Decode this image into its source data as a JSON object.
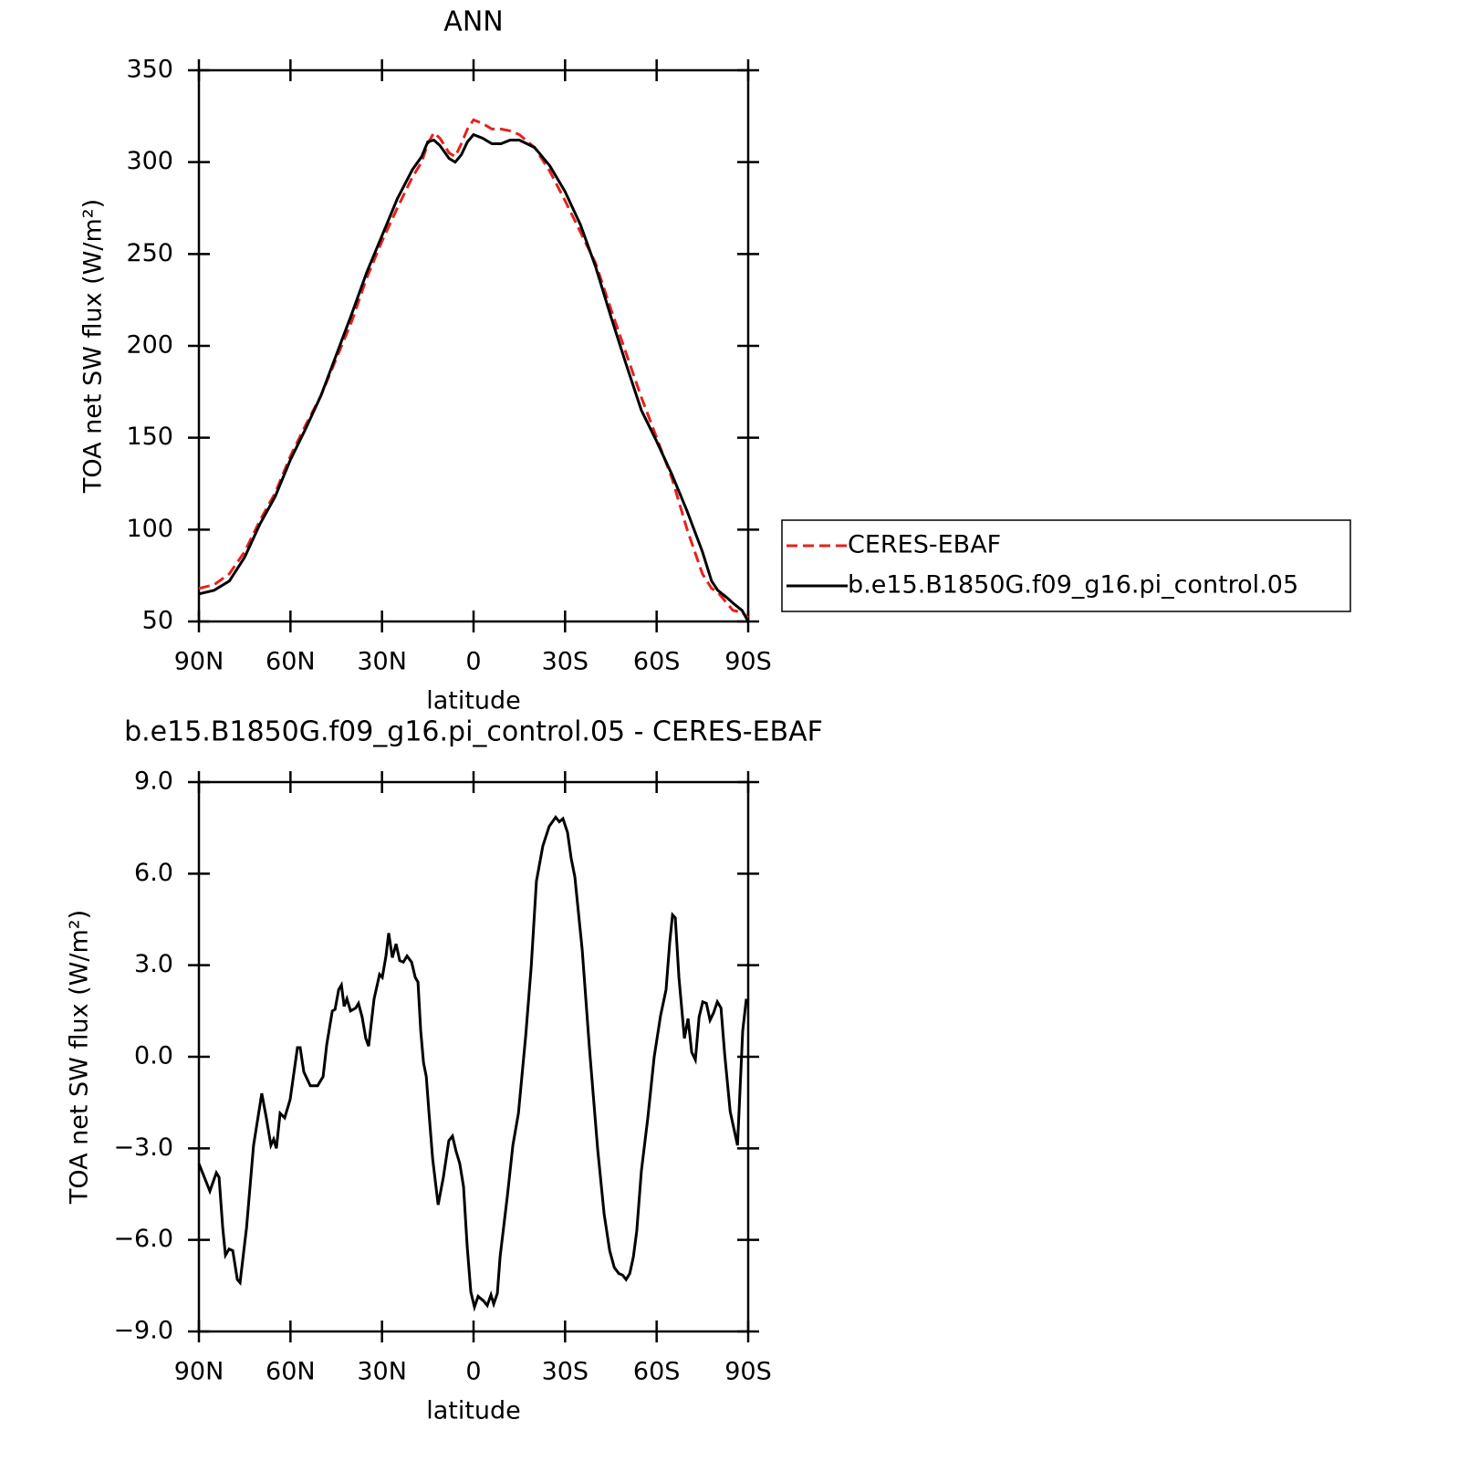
{
  "chart_data": [
    {
      "type": "line",
      "title": "ANN",
      "xlabel": "latitude",
      "ylabel": "TOA net SW flux (W/m²)",
      "x": [
        90,
        85,
        80,
        75,
        70,
        65,
        60,
        55,
        50,
        45,
        40,
        35,
        30,
        25,
        20,
        17,
        15,
        13,
        11,
        8,
        6,
        4,
        2,
        0,
        -3,
        -6,
        -9,
        -12,
        -15,
        -20,
        -25,
        -30,
        -35,
        -40,
        -45,
        -50,
        -55,
        -60,
        -65,
        -70,
        -75,
        -78,
        -80,
        -83,
        -85,
        -88,
        -90
      ],
      "series": [
        {
          "name": "CERES-EBAF",
          "color": "#e8201c",
          "style": "dashed",
          "values": [
            68,
            70,
            76,
            88,
            105,
            120,
            140,
            157,
            173,
            193,
            213,
            237,
            257,
            275,
            292,
            300,
            310,
            316,
            313,
            305,
            303,
            310,
            318,
            323,
            321,
            318,
            318,
            317,
            315,
            308,
            295,
            279,
            262,
            245,
            220,
            196,
            172,
            150,
            128,
            100,
            76,
            68,
            66,
            60,
            56,
            55,
            52
          ]
        },
        {
          "name": "b.e15.B1850G.f09_g16.pi_control.05",
          "color": "#000000",
          "style": "solid",
          "values": [
            65,
            67,
            72,
            85,
            103,
            118,
            138,
            155,
            173,
            195,
            217,
            240,
            260,
            280,
            296,
            303,
            311,
            312,
            309,
            302,
            300,
            304,
            311,
            315,
            313,
            310,
            310,
            312,
            312,
            308,
            298,
            284,
            266,
            243,
            216,
            190,
            165,
            148,
            130,
            110,
            88,
            72,
            67,
            63,
            60,
            56,
            50
          ]
        }
      ],
      "xlim": [
        90,
        -90
      ],
      "xticks": [
        {
          "value": 90,
          "label": "90N"
        },
        {
          "value": 60,
          "label": "60N"
        },
        {
          "value": 30,
          "label": "30N"
        },
        0,
        {
          "value": -30,
          "label": "30S"
        },
        {
          "value": -60,
          "label": "60S"
        },
        {
          "value": -90,
          "label": "90S"
        }
      ],
      "ylim": [
        50,
        350
      ],
      "yticks": [
        50,
        100,
        150,
        200,
        250,
        300,
        350
      ],
      "legend": "right"
    },
    {
      "type": "line",
      "title": "b.e15.B1850G.f09_g16.pi_control.05 - CERES-EBAF",
      "xlabel": "latitude",
      "ylabel": "TOA net SW flux (W/m²)",
      "x": [
        90,
        86.4,
        84.3,
        83.4,
        82.2,
        81.3,
        80.1,
        78.9,
        77.4,
        76.5,
        74.4,
        72.1,
        70.9,
        69.4,
        67.9,
        66.4,
        65.5,
        64.6,
        63.4,
        61.9,
        60.1,
        57.7,
        56.8,
        55.6,
        53.5,
        51.1,
        49.3,
        48.1,
        46.3,
        45.4,
        44.2,
        43.3,
        42.4,
        41.5,
        40.3,
        38.6,
        37.7,
        36.5,
        35.3,
        34.4,
        32.6,
        30.8,
        29.9,
        28.7,
        27.8,
        26.6,
        25.4,
        24.2,
        23.0,
        21.8,
        20.3,
        19.1,
        18.2,
        17.3,
        16.4,
        15.5,
        14.6,
        13.4,
        11.6,
        9.9,
        8.1,
        6.9,
        5.7,
        4.5,
        3.3,
        2.1,
        0.9,
        -0.3,
        -1.5,
        -3.3,
        -4.5,
        -5.7,
        -6.6,
        -7.8,
        -8.7,
        -11.1,
        -12.9,
        -14.7,
        -17.1,
        -18.9,
        -20.6,
        -22.7,
        -24.8,
        -26.9,
        -28.1,
        -29.3,
        -30.8,
        -32.0,
        -33.2,
        -35.6,
        -38.0,
        -40.7,
        -42.8,
        -44.6,
        -46.1,
        -47.6,
        -48.8,
        -50.0,
        -51.2,
        -52.4,
        -53.5,
        -55.0,
        -57.1,
        -59.2,
        -61.3,
        -63.1,
        -64.3,
        -65.2,
        -66.1,
        -67.3,
        -69.1,
        -70.3,
        -71.5,
        -72.7,
        -73.9,
        -75.1,
        -76.3,
        -77.5,
        -78.7,
        -79.9,
        -81.1,
        -82.3,
        -84.1,
        -86.5,
        -88.2,
        -89.4
      ],
      "series": [
        {
          "color": "#000000",
          "style": "solid",
          "values": [
            -3.5,
            -4.4,
            -3.8,
            -3.95,
            -5.6,
            -6.5,
            -6.3,
            -6.35,
            -7.3,
            -7.4,
            -5.6,
            -2.9,
            -2.15,
            -1.2,
            -2.0,
            -2.9,
            -2.7,
            -3.0,
            -1.85,
            -2.0,
            -1.4,
            0.3,
            0.3,
            -0.5,
            -0.95,
            -0.95,
            -0.65,
            0.4,
            1.5,
            1.55,
            2.2,
            2.35,
            1.65,
            1.9,
            1.5,
            1.6,
            1.75,
            1.3,
            0.6,
            0.35,
            1.9,
            2.7,
            2.6,
            3.3,
            4.05,
            3.25,
            3.7,
            3.15,
            3.1,
            3.3,
            3.1,
            2.6,
            2.45,
            0.85,
            -0.2,
            -0.65,
            -1.85,
            -3.35,
            -4.85,
            -3.95,
            -2.75,
            -2.6,
            -3.1,
            -3.5,
            -4.25,
            -6.2,
            -7.7,
            -8.2,
            -7.85,
            -8.0,
            -8.15,
            -7.8,
            -8.1,
            -7.75,
            -6.55,
            -4.55,
            -2.9,
            -1.85,
            0.7,
            2.95,
            5.75,
            6.9,
            7.55,
            7.85,
            7.7,
            7.8,
            7.35,
            6.5,
            5.9,
            3.5,
            0.25,
            -3.05,
            -5.15,
            -6.35,
            -6.9,
            -7.1,
            -7.15,
            -7.3,
            -7.1,
            -6.55,
            -5.7,
            -3.75,
            -2.0,
            0.0,
            1.35,
            2.2,
            3.75,
            4.65,
            4.55,
            2.6,
            0.6,
            1.25,
            0.15,
            -0.1,
            1.3,
            1.8,
            1.75,
            1.2,
            1.45,
            1.8,
            1.6,
            0.1,
            -1.8,
            -2.9,
            0.85,
            1.9
          ]
        }
      ],
      "xlim": [
        90,
        -90
      ],
      "xticks": [
        {
          "value": 90,
          "label": "90N"
        },
        {
          "value": 60,
          "label": "60N"
        },
        {
          "value": 30,
          "label": "30N"
        },
        0,
        {
          "value": -30,
          "label": "30S"
        },
        {
          "value": -60,
          "label": "60S"
        },
        {
          "value": -90,
          "label": "90S"
        }
      ],
      "ylim": [
        -9,
        9
      ],
      "yticks": [
        {
          "value": -9,
          "label": "−9.0"
        },
        {
          "value": -6,
          "label": "−6.0"
        },
        {
          "value": -3,
          "label": "−3.0"
        },
        {
          "value": 0,
          "label": "0.0"
        },
        {
          "value": 3,
          "label": "3.0"
        },
        {
          "value": 6,
          "label": "6.0"
        },
        {
          "value": 9,
          "label": "9.0"
        }
      ]
    }
  ]
}
